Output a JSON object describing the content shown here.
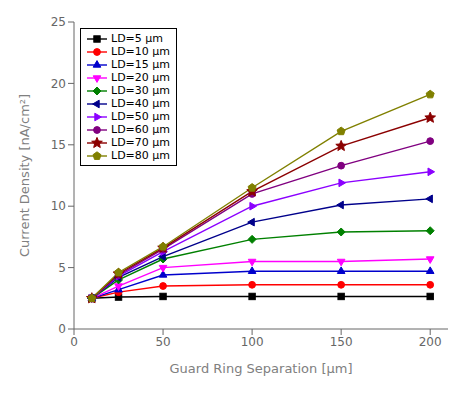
{
  "chart_data": {
    "type": "line",
    "x": [
      10,
      25,
      50,
      100,
      150,
      200
    ],
    "series": [
      {
        "name": "LD=5 μm",
        "color": "#000000",
        "marker": "square",
        "values": [
          2.5,
          2.6,
          2.65,
          2.65,
          2.65,
          2.65
        ]
      },
      {
        "name": "LD=10 μm",
        "color": "#ff0000",
        "marker": "circle",
        "values": [
          2.5,
          3.0,
          3.5,
          3.6,
          3.6,
          3.6
        ]
      },
      {
        "name": "LD=15 μm",
        "color": "#0000cc",
        "marker": "triangle-up",
        "values": [
          2.5,
          3.2,
          4.4,
          4.7,
          4.7,
          4.7
        ]
      },
      {
        "name": "LD=20 μm",
        "color": "#ff00ff",
        "marker": "triangle-down",
        "values": [
          2.5,
          3.5,
          5.0,
          5.5,
          5.5,
          5.7
        ]
      },
      {
        "name": "LD=30 μm",
        "color": "#008000",
        "marker": "diamond",
        "values": [
          2.5,
          4.0,
          5.7,
          7.3,
          7.9,
          8.0
        ]
      },
      {
        "name": "LD=40 μm",
        "color": "#00008b",
        "marker": "triangle-left",
        "values": [
          2.5,
          4.2,
          5.9,
          8.7,
          10.1,
          10.6
        ]
      },
      {
        "name": "LD=50 μm",
        "color": "#8b00ff",
        "marker": "triangle-right",
        "values": [
          2.5,
          4.3,
          6.3,
          10.0,
          11.9,
          12.8
        ]
      },
      {
        "name": "LD=60 μm",
        "color": "#800080",
        "marker": "circle",
        "values": [
          2.5,
          4.4,
          6.5,
          11.0,
          13.3,
          15.3
        ]
      },
      {
        "name": "LD=70 μm",
        "color": "#8b0000",
        "marker": "star",
        "values": [
          2.5,
          4.5,
          6.6,
          11.2,
          14.9,
          17.2
        ]
      },
      {
        "name": "LD=80 μm",
        "color": "#808000",
        "marker": "pentagon",
        "values": [
          2.5,
          4.6,
          6.7,
          11.5,
          16.1,
          19.1
        ]
      }
    ],
    "xlabel": "Guard Ring Separation [μm]",
    "ylabel": "Current Density [nA/cm²]",
    "xlim": [
      0,
      210
    ],
    "ylim": [
      0,
      25
    ],
    "xticks": [
      0,
      50,
      100,
      150,
      200
    ],
    "yticks": [
      0,
      5,
      10,
      15,
      20,
      25
    ],
    "grid": false,
    "legend": "upper left"
  }
}
